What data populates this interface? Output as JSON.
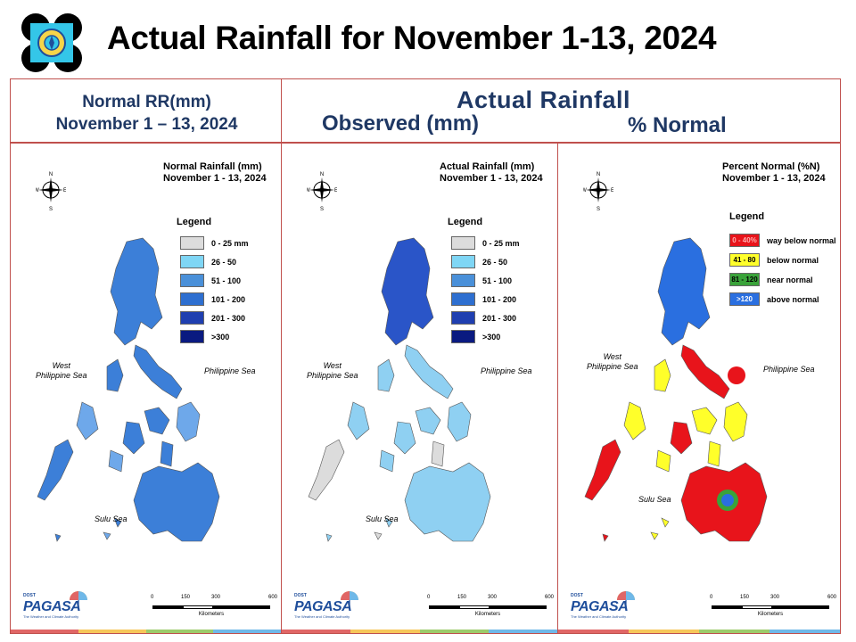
{
  "header": {
    "title": "Actual Rainfall for November 1-13, 2024"
  },
  "left_header": {
    "line1": "Normal RR(mm)",
    "line2": "November 1 – 13, 2024"
  },
  "right_header": {
    "title": "Actual Rainfall",
    "observed_label": "Observed (mm)",
    "percent_label": "% Normal"
  },
  "maps": [
    {
      "title_line1": "Normal Rainfall (mm)",
      "title_line2": "November 1 - 13, 2024",
      "legend_title": "Legend",
      "legend": [
        {
          "label": "0 - 25 mm",
          "color": "#dcdcdc"
        },
        {
          "label": "26 - 50",
          "color": "#7fd6f5"
        },
        {
          "label": "51 - 100",
          "color": "#4a90d9"
        },
        {
          "label": "101 - 200",
          "color": "#2e6fd0"
        },
        {
          "label": "201 - 300",
          "color": "#1f3fb0"
        },
        {
          "label": ">300",
          "color": "#0a1a80"
        }
      ],
      "seas": {
        "west_line1": "West",
        "west_line2": "Philippine Sea",
        "east": "Philippine Sea",
        "sulu": "Sulu Sea"
      },
      "fill_main": "#3c7fd8",
      "fill_light": "#6ea8ea",
      "fill_dark": "#1f4fc0"
    },
    {
      "title_line1": "Actual Rainfall (mm)",
      "title_line2": "November 1 - 13, 2024",
      "legend_title": "Legend",
      "legend": [
        {
          "label": "0 - 25 mm",
          "color": "#dcdcdc"
        },
        {
          "label": "26 - 50",
          "color": "#7fd6f5"
        },
        {
          "label": "51 - 100",
          "color": "#4a90d9"
        },
        {
          "label": "101 - 200",
          "color": "#2e6fd0"
        },
        {
          "label": "201 - 300",
          "color": "#1f3fb0"
        },
        {
          "label": ">300",
          "color": "#0a1a80"
        }
      ],
      "seas": {
        "west_line1": "West",
        "west_line2": "Philippine Sea",
        "east": "Philippine Sea",
        "sulu": "Sulu Sea"
      },
      "fill_main": "#8fd0f2",
      "fill_light": "#dcdcdc",
      "fill_dark": "#2a55c8"
    },
    {
      "title_line1": "Percent Normal (%N)",
      "title_line2": "November 1 - 13, 2024",
      "legend_title": "Legend",
      "legend": [
        {
          "swatch": "0 - 40%",
          "label": "way below normal",
          "color": "#e8141b",
          "text_color": "#ffb0b0"
        },
        {
          "swatch": "41 - 80",
          "label": "below normal",
          "color": "#ffff2a",
          "text_color": "#000000"
        },
        {
          "swatch": "81 - 120",
          "label": "near normal",
          "color": "#3aa33a",
          "text_color": "#000000"
        },
        {
          "swatch": ">120",
          "label": "above normal",
          "color": "#2a6fe0",
          "text_color": "#ffffff"
        }
      ],
      "seas": {
        "west_line1": "West",
        "west_line2": "Philippine Sea",
        "east": "Philippine Sea",
        "sulu": "Sulu Sea"
      },
      "fill_main": "#ffff2a",
      "fill_light": "#e8141b",
      "fill_dark": "#2a6fe0"
    }
  ],
  "compass": {
    "n": "N",
    "e": "E",
    "s": "S",
    "w": "W"
  },
  "scale": {
    "ticks": [
      "0",
      "150",
      "300",
      "600"
    ],
    "unit": "Kilometers"
  },
  "brand": {
    "dost": "DOST",
    "name": "PAGASA",
    "tagline": "The Weather and Climate Authority"
  },
  "stripe_colors": [
    "#e06666",
    "#f6c75a",
    "#9ccb6b",
    "#6fb8e8"
  ]
}
